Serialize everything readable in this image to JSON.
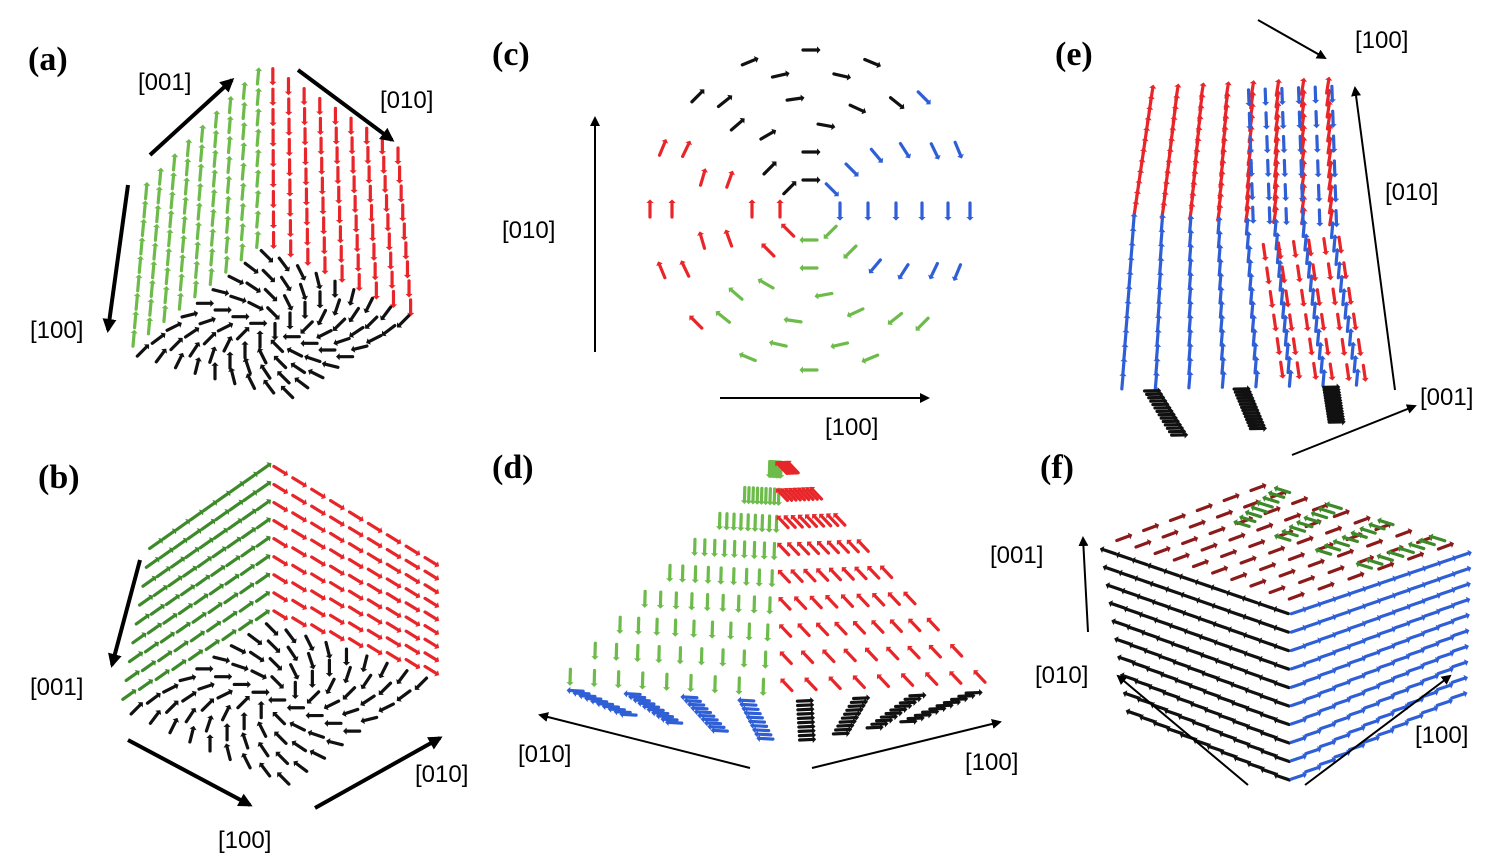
{
  "figure": {
    "panels": [
      {
        "id": "a",
        "label": "(a)",
        "axes": [
          "[001]",
          "[010]",
          "[100]"
        ]
      },
      {
        "id": "b",
        "label": "(b)",
        "axes": [
          "[001]",
          "[100]",
          "[010]"
        ]
      },
      {
        "id": "c",
        "label": "(c)",
        "axes": [
          "[010]",
          "[100]"
        ]
      },
      {
        "id": "d",
        "label": "(d)",
        "axes": [
          "[010]",
          "[100]"
        ]
      },
      {
        "id": "e",
        "label": "(e)",
        "axes": [
          "[100]",
          "[010]",
          "[001]"
        ]
      },
      {
        "id": "f",
        "label": "(f)",
        "axes": [
          "[001]",
          "[010]",
          "[100]"
        ]
      }
    ]
  },
  "colors": {
    "red": "#e8262a",
    "green": "#6dbb4a",
    "dark_green": "#3d8a2a",
    "blue": "#2f5fd6",
    "black": "#111111",
    "dark_red": "#8b1a1a"
  }
}
